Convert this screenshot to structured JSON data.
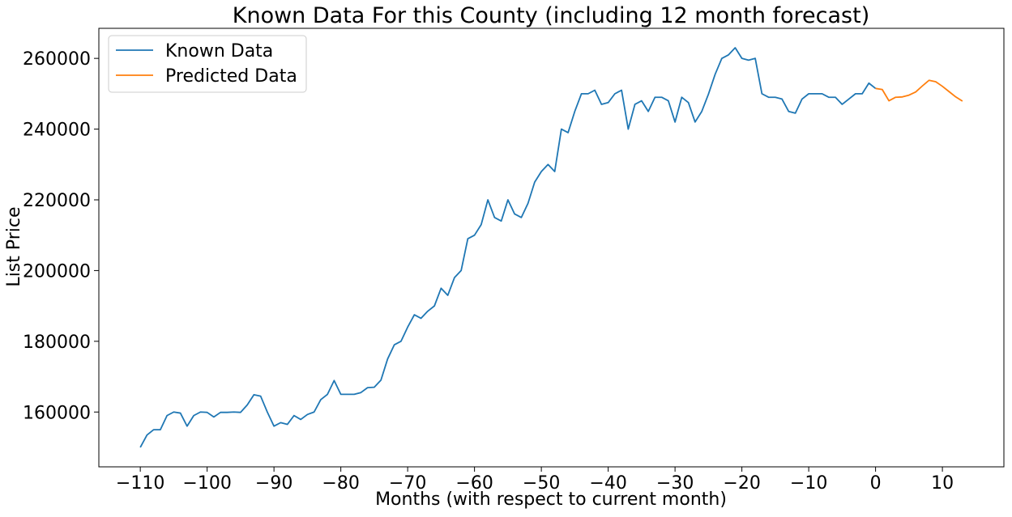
{
  "chart_data": {
    "type": "line",
    "title": "Known Data For this County (including 12 month forecast)",
    "xlabel": "Months (with respect to current month)",
    "ylabel": "List Price",
    "xlim": [
      -116.2,
      19.2
    ],
    "ylim": [
      144500,
      268500
    ],
    "xticks": [
      -110,
      -100,
      -90,
      -80,
      -70,
      -60,
      -50,
      -40,
      -30,
      -20,
      -10,
      0,
      10
    ],
    "xtick_labels": [
      "−110",
      "−100",
      "−90",
      "−80",
      "−70",
      "−60",
      "−50",
      "−40",
      "−30",
      "−20",
      "−10",
      "0",
      "10"
    ],
    "yticks": [
      160000,
      180000,
      200000,
      220000,
      240000,
      260000
    ],
    "ytick_labels": [
      "160000",
      "180000",
      "200000",
      "220000",
      "240000",
      "260000"
    ],
    "grid": false,
    "legend_position": "upper-left",
    "series": [
      {
        "name": "Known Data",
        "color": "#1f77b4",
        "x": [
          -110,
          -109,
          -108,
          -107,
          -106,
          -105,
          -104,
          -103,
          -102,
          -101,
          -100,
          -99,
          -98,
          -97,
          -96,
          -95,
          -94,
          -93,
          -92,
          -91,
          -90,
          -89,
          -88,
          -87,
          -86,
          -85,
          -84,
          -83,
          -82,
          -81,
          -80,
          -79,
          -78,
          -77,
          -76,
          -75,
          -74,
          -73,
          -72,
          -71,
          -70,
          -69,
          -68,
          -67,
          -66,
          -65,
          -64,
          -63,
          -62,
          -61,
          -60,
          -59,
          -58,
          -57,
          -56,
          -55,
          -54,
          -53,
          -52,
          -51,
          -50,
          -49,
          -48,
          -47,
          -46,
          -45,
          -44,
          -43,
          -42,
          -41,
          -40,
          -39,
          -38,
          -37,
          -36,
          -35,
          -34,
          -33,
          -32,
          -31,
          -30,
          -29,
          -28,
          -27,
          -26,
          -25,
          -24,
          -23,
          -22,
          -21,
          -20,
          -19,
          -18,
          -17,
          -16,
          -15,
          -14,
          -13,
          -12,
          -11,
          -10,
          -9,
          -8,
          -7,
          -6,
          -5,
          -4,
          -3,
          -2,
          -1,
          0
        ],
        "values": [
          150000,
          153500,
          155000,
          155000,
          159000,
          160000,
          159700,
          156000,
          159000,
          160000,
          159900,
          158600,
          159900,
          159900,
          160000,
          159900,
          162000,
          164900,
          164500,
          160000,
          156000,
          157000,
          156500,
          159000,
          157900,
          159300,
          160000,
          163500,
          165000,
          168900,
          165000,
          165000,
          165000,
          165500,
          166900,
          167000,
          169000,
          175000,
          179000,
          180000,
          184000,
          187500,
          186500,
          188500,
          190000,
          195000,
          193000,
          198000,
          200000,
          209000,
          210000,
          213000,
          220000,
          215000,
          214000,
          220000,
          216000,
          215000,
          219000,
          225000,
          228000,
          230000,
          228000,
          240000,
          239000,
          245000,
          250000,
          250000,
          251000,
          247000,
          247500,
          250000,
          251000,
          240000,
          247000,
          248000,
          245000,
          249000,
          249000,
          248000,
          242000,
          249000,
          247500,
          242000,
          245000,
          249900,
          255500,
          260000,
          261000,
          263000,
          260000,
          259500,
          260000,
          250000,
          249000,
          249000,
          248500,
          245000,
          244500,
          248500,
          250000,
          250000,
          250000,
          249000,
          249000,
          247000,
          248500,
          250000,
          250000,
          253000,
          251500
        ],
        "mark_names": []
      },
      {
        "name": "Predicted Data",
        "color": "#ff7f0e",
        "x": [
          0,
          1,
          2,
          3,
          4,
          5,
          6,
          7,
          8,
          9,
          10,
          11,
          12,
          13
        ],
        "values": [
          251500,
          251200,
          248000,
          249000,
          249100,
          249600,
          250500,
          252200,
          253800,
          253400,
          252100,
          250600,
          249100,
          247900
        ]
      }
    ]
  }
}
